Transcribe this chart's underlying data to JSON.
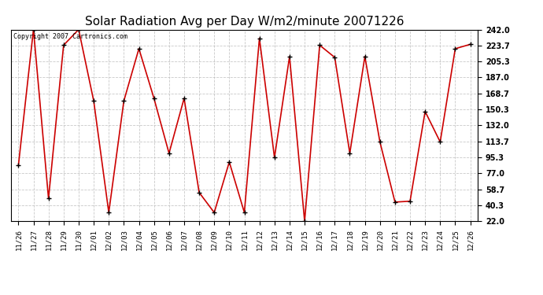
{
  "title": "Solar Radiation Avg per Day W/m2/minute 20071226",
  "copyright_text": "Copyright 2007 Cartronics.com",
  "dates": [
    "11/26",
    "11/27",
    "11/28",
    "11/29",
    "11/30",
    "12/01",
    "12/02",
    "12/03",
    "12/04",
    "12/05",
    "12/06",
    "12/07",
    "12/08",
    "12/09",
    "12/10",
    "12/11",
    "12/12",
    "12/13",
    "12/14",
    "12/15",
    "12/16",
    "12/17",
    "12/18",
    "12/19",
    "12/20",
    "12/21",
    "12/22",
    "12/23",
    "12/24",
    "12/25",
    "12/26"
  ],
  "values": [
    86,
    242,
    48,
    224,
    242,
    160,
    32,
    160,
    220,
    163,
    100,
    163,
    55,
    32,
    90,
    32,
    232,
    95,
    211,
    22,
    224,
    210,
    100,
    211,
    113,
    44,
    45,
    148,
    113,
    220,
    225
  ],
  "line_color": "#cc0000",
  "marker": "+",
  "marker_size": 5,
  "marker_color": "#000000",
  "yticks": [
    22.0,
    40.3,
    58.7,
    77.0,
    95.3,
    113.7,
    132.0,
    150.3,
    168.7,
    187.0,
    205.3,
    223.7,
    242.0
  ],
  "bg_color": "#ffffff",
  "grid_color": "#bbbbbb",
  "title_fontsize": 11,
  "copyright_fontsize": 6
}
